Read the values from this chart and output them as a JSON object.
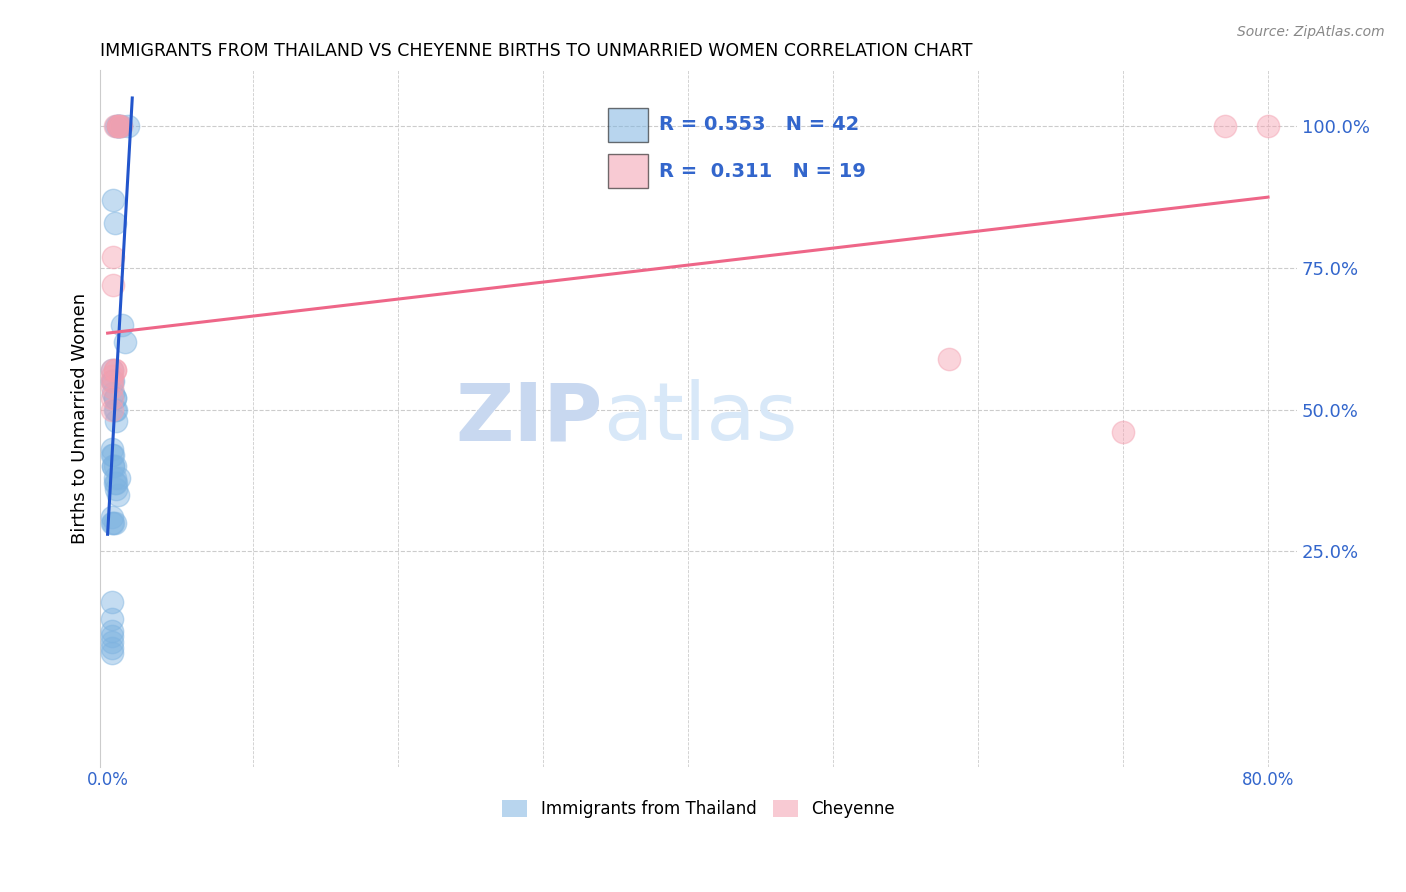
{
  "title": "IMMIGRANTS FROM THAILAND VS CHEYENNE BIRTHS TO UNMARRIED WOMEN CORRELATION CHART",
  "source": "Source: ZipAtlas.com",
  "ylabel": "Births to Unmarried Women",
  "y_tick_values": [
    0.25,
    0.5,
    0.75,
    1.0
  ],
  "xlim": [
    -0.005,
    0.82
  ],
  "ylim": [
    -0.13,
    1.1
  ],
  "blue_R": "0.553",
  "blue_N": "42",
  "pink_R": "0.311",
  "pink_N": "19",
  "blue_color": "#7EB3E0",
  "pink_color": "#F4A0B0",
  "blue_line_color": "#2255CC",
  "pink_line_color": "#EE6688",
  "legend_label_blue": "Immigrants from Thailand",
  "legend_label_pink": "Cheyenne",
  "watermark_zip": "ZIP",
  "watermark_atlas": "atlas",
  "blue_scatter_x": [
    0.006,
    0.007,
    0.007,
    0.008,
    0.009,
    0.004,
    0.005,
    0.01,
    0.012,
    0.003,
    0.003,
    0.004,
    0.004,
    0.005,
    0.005,
    0.005,
    0.006,
    0.006,
    0.003,
    0.003,
    0.004,
    0.004,
    0.004,
    0.005,
    0.005,
    0.005,
    0.006,
    0.006,
    0.007,
    0.008,
    0.003,
    0.003,
    0.004,
    0.005,
    0.014,
    0.003,
    0.003,
    0.003,
    0.003,
    0.003,
    0.003,
    0.003
  ],
  "blue_scatter_y": [
    1.0,
    1.0,
    1.0,
    1.0,
    1.0,
    0.87,
    0.83,
    0.65,
    0.62,
    0.57,
    0.55,
    0.55,
    0.53,
    0.52,
    0.52,
    0.5,
    0.5,
    0.48,
    0.43,
    0.42,
    0.42,
    0.4,
    0.4,
    0.4,
    0.38,
    0.37,
    0.37,
    0.36,
    0.35,
    0.38,
    0.31,
    0.3,
    0.3,
    0.3,
    1.0,
    0.16,
    0.13,
    0.11,
    0.1,
    0.09,
    0.08,
    0.07
  ],
  "pink_scatter_x": [
    0.005,
    0.007,
    0.007,
    0.008,
    0.009,
    0.004,
    0.004,
    0.005,
    0.005,
    0.003,
    0.003,
    0.003,
    0.003,
    0.003,
    0.003,
    0.58,
    0.7,
    0.77,
    0.8
  ],
  "pink_scatter_y": [
    1.0,
    1.0,
    1.0,
    1.0,
    1.0,
    0.77,
    0.72,
    0.57,
    0.57,
    0.57,
    0.56,
    0.55,
    0.54,
    0.52,
    0.5,
    0.59,
    0.46,
    1.0,
    1.0
  ],
  "blue_line_x0": 0.0,
  "blue_line_x1": 0.017,
  "blue_line_y0": 0.28,
  "blue_line_y1": 1.05,
  "pink_line_x0": 0.0,
  "pink_line_x1": 0.8,
  "pink_line_y0": 0.635,
  "pink_line_y1": 0.875
}
